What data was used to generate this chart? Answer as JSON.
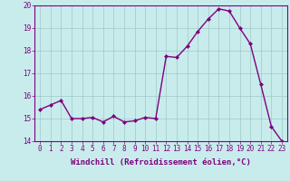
{
  "x": [
    0,
    1,
    2,
    3,
    4,
    5,
    6,
    7,
    8,
    9,
    10,
    11,
    12,
    13,
    14,
    15,
    16,
    17,
    18,
    19,
    20,
    21,
    22,
    23
  ],
  "y": [
    15.4,
    15.6,
    15.8,
    15.0,
    15.0,
    15.05,
    14.85,
    15.1,
    14.85,
    14.9,
    15.05,
    15.0,
    17.75,
    17.7,
    18.2,
    18.85,
    19.4,
    19.85,
    19.75,
    19.0,
    18.3,
    16.5,
    14.65,
    14.0
  ],
  "line_color": "#800080",
  "marker": "D",
  "marker_size": 2,
  "background_color": "#c8ecec",
  "grid_color": "#a0c8c8",
  "xlabel": "Windchill (Refroidissement éolien,°C)",
  "xlabel_color": "#800080",
  "tick_color": "#800080",
  "ylim": [
    14,
    20
  ],
  "xlim": [
    -0.5,
    23.5
  ],
  "yticks": [
    14,
    15,
    16,
    17,
    18,
    19,
    20
  ],
  "xticks": [
    0,
    1,
    2,
    3,
    4,
    5,
    6,
    7,
    8,
    9,
    10,
    11,
    12,
    13,
    14,
    15,
    16,
    17,
    18,
    19,
    20,
    21,
    22,
    23
  ],
  "linewidth": 1.0,
  "tick_fontsize": 5.5,
  "xlabel_fontsize": 6.5,
  "xlabel_fontweight": "bold"
}
